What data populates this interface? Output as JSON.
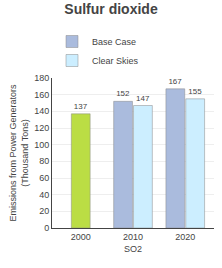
{
  "chart_data": {
    "type": "bar",
    "title": "Sulfur dioxide",
    "xlabel": "SO2",
    "ylabel": "Emissions from Power Generators\n(Thousand Tons)",
    "categories": [
      "2000",
      "2010",
      "2020"
    ],
    "series": [
      {
        "name": "Base Case",
        "color": "#aabbdd",
        "colors": [
          "#bbdd44",
          "#aabbdd",
          "#aabbdd"
        ],
        "values": [
          137,
          152,
          167
        ]
      },
      {
        "name": "Clear Skies",
        "color": "#cceeff",
        "values": [
          null,
          147,
          155
        ]
      }
    ],
    "ylim": [
      0,
      180
    ],
    "yticks": [
      0,
      20,
      40,
      60,
      80,
      100,
      120,
      140,
      160,
      180
    ],
    "grid": true,
    "legend": "upper left",
    "data_labels": true
  }
}
